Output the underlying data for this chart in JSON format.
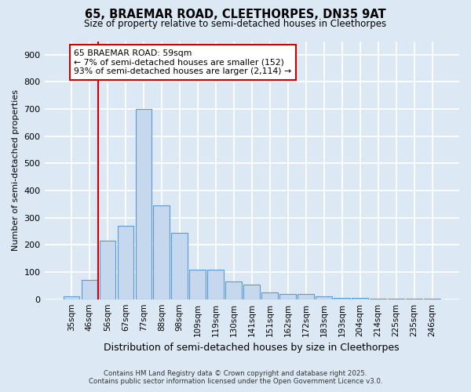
{
  "title_line1": "65, BRAEMAR ROAD, CLEETHORPES, DN35 9AT",
  "title_line2": "Size of property relative to semi-detached houses in Cleethorpes",
  "xlabel": "Distribution of semi-detached houses by size in Cleethorpes",
  "ylabel": "Number of semi-detached properties",
  "categories": [
    "35sqm",
    "46sqm",
    "56sqm",
    "67sqm",
    "77sqm",
    "88sqm",
    "98sqm",
    "109sqm",
    "119sqm",
    "130sqm",
    "141sqm",
    "151sqm",
    "162sqm",
    "172sqm",
    "183sqm",
    "193sqm",
    "204sqm",
    "214sqm",
    "225sqm",
    "235sqm",
    "246sqm"
  ],
  "values": [
    10,
    70,
    215,
    270,
    700,
    345,
    245,
    110,
    110,
    65,
    55,
    25,
    20,
    20,
    10,
    5,
    5,
    3,
    2,
    2,
    2
  ],
  "bar_color": "#c5d8ed",
  "bar_edge_color": "#5b9bd5",
  "vline_x": 1.5,
  "vline_color": "#cc0000",
  "annotation_text": "65 BRAEMAR ROAD: 59sqm\n← 7% of semi-detached houses are smaller (152)\n93% of semi-detached houses are larger (2,114) →",
  "annotation_box_edge": "#cc0000",
  "annotation_box_face": "white",
  "footnote1": "Contains HM Land Registry data © Crown copyright and database right 2025.",
  "footnote2": "Contains public sector information licensed under the Open Government Licence v3.0.",
  "bg_color": "#dce8f3",
  "plot_bg_color": "#dce8f3",
  "grid_color": "white",
  "ylim": [
    0,
    950
  ],
  "yticks": [
    0,
    100,
    200,
    300,
    400,
    500,
    600,
    700,
    800,
    900
  ]
}
